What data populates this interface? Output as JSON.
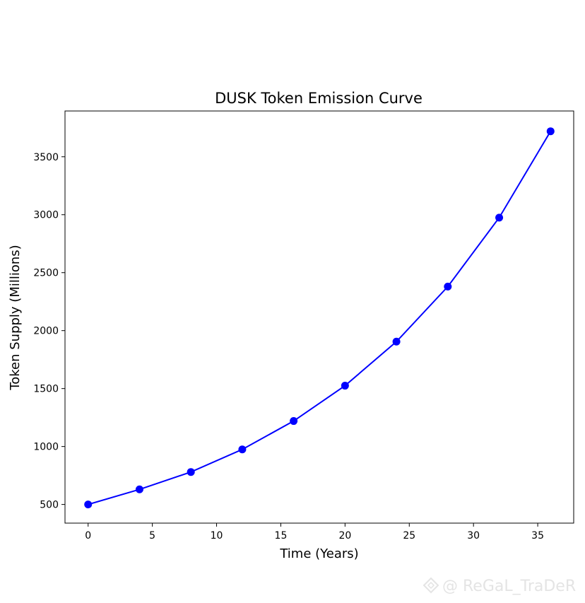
{
  "chart_data": {
    "type": "line",
    "title": "DUSK Token Emission Curve",
    "xlabel": "Time (Years)",
    "ylabel": "Token Supply (Millions)",
    "x": [
      0,
      4,
      8,
      12,
      16,
      20,
      24,
      28,
      32,
      36
    ],
    "series": [
      {
        "values": [
          500,
          630,
          780,
          975,
          1220,
          1525,
          1905,
          2380,
          2975,
          3720
        ],
        "color": "#0000ff"
      }
    ],
    "xlim": [
      -1.8,
      37.8
    ],
    "ylim": [
      339,
      3895
    ],
    "xticks": [
      0,
      5,
      10,
      15,
      20,
      25,
      30,
      35
    ],
    "yticks": [
      500,
      1000,
      1500,
      2000,
      2500,
      3000,
      3500
    ],
    "marker": "circle",
    "grid": false,
    "legend": "none"
  },
  "watermark": {
    "text": "@ ReGaL_TraDeR",
    "icon": "diamond-logo-icon"
  }
}
